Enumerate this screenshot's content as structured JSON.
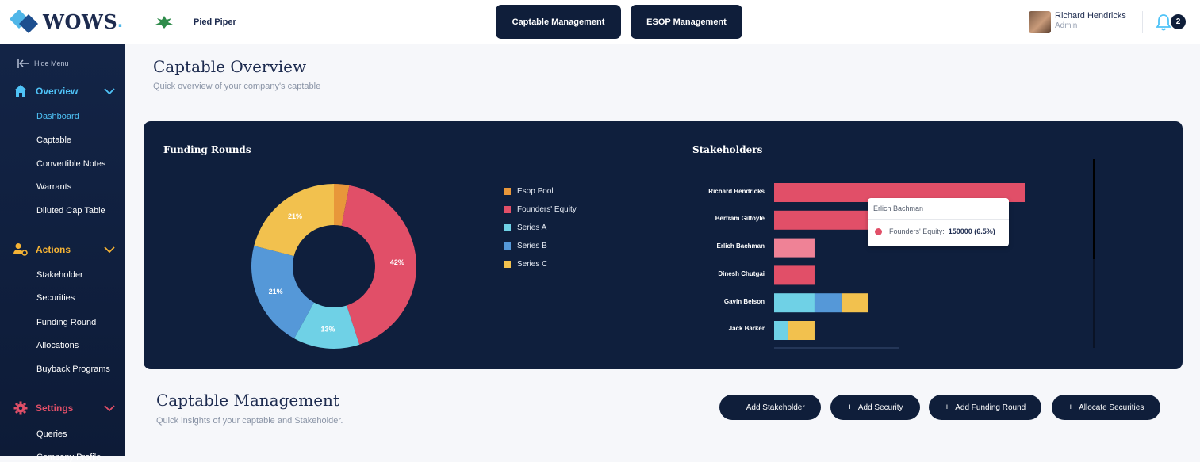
{
  "app": {
    "logo_text": "WOWS",
    "company_name": "Pied Piper"
  },
  "header": {
    "nav_buttons": [
      "Captable Management",
      "ESOP Management"
    ],
    "user": {
      "name": "Richard Hendricks",
      "role": "Admin"
    },
    "notification_count": "2"
  },
  "sidebar": {
    "hide_menu": "Hide Menu",
    "sections": [
      {
        "label": "Overview",
        "icon": "home-icon",
        "color": "#4fc3f7",
        "items": [
          "Dashboard",
          "Captable",
          "Convertible Notes",
          "Warrants",
          "Diluted Cap Table"
        ]
      },
      {
        "label": "Actions",
        "icon": "user-gear-icon",
        "color": "#f5b335",
        "items": [
          "Stakeholder",
          "Securities",
          "Funding Round",
          "Allocations",
          "Buyback Programs"
        ]
      },
      {
        "label": "Settings",
        "icon": "gear-icon",
        "color": "#e14f68",
        "items": [
          "Queries",
          "Company Profile"
        ]
      }
    ],
    "active_item": "Dashboard"
  },
  "overview": {
    "title": "Captable Overview",
    "subtitle": "Quick overview of your company's captable"
  },
  "funding_rounds": {
    "title": "Funding Rounds"
  },
  "stakeholders": {
    "title": "Stakeholders",
    "tooltip": {
      "name": "Erlich Bachman",
      "series": "Founders' Equity:",
      "value": "150000 (6.5%)"
    }
  },
  "management": {
    "title": "Captable Management",
    "subtitle": "Quick insights of your captable and Stakeholder.",
    "buttons": [
      "Add Stakeholder",
      "Add Security",
      "Add Funding Round",
      "Allocate Securities"
    ]
  },
  "colors": {
    "esop_pool": "#e8973a",
    "founders_equity": "#e14f68",
    "series_a": "#6fd1e6",
    "series_b": "#5598d8",
    "series_c": "#f2c14e"
  },
  "chart_data": [
    {
      "type": "pie",
      "title": "Funding Rounds",
      "categories": [
        "Esop Pool",
        "Founders' Equity",
        "Series A",
        "Series B",
        "Series C"
      ],
      "values": [
        3,
        42,
        13,
        21,
        21
      ],
      "data_labels": [
        "",
        "42%",
        "13%",
        "21%",
        "21%"
      ],
      "legend": "right"
    },
    {
      "type": "bar",
      "orientation": "horizontal",
      "stacked": true,
      "title": "Stakeholders",
      "categories": [
        "Richard Hendricks",
        "Bertram Gilfoyle",
        "Erlich Bachman",
        "Dinesh Chutgai",
        "Gavin Belson",
        "Jack Barker"
      ],
      "series": [
        {
          "name": "Founders' Equity",
          "values": [
            930000,
            390000,
            150000,
            150000,
            0,
            0
          ]
        },
        {
          "name": "Series A",
          "values": [
            0,
            0,
            0,
            0,
            150000,
            50000
          ]
        },
        {
          "name": "Series B",
          "values": [
            0,
            0,
            0,
            0,
            100000,
            0
          ]
        },
        {
          "name": "Series C",
          "values": [
            0,
            0,
            0,
            0,
            100000,
            100000
          ]
        }
      ],
      "xlim": [
        0,
        930000
      ]
    }
  ]
}
